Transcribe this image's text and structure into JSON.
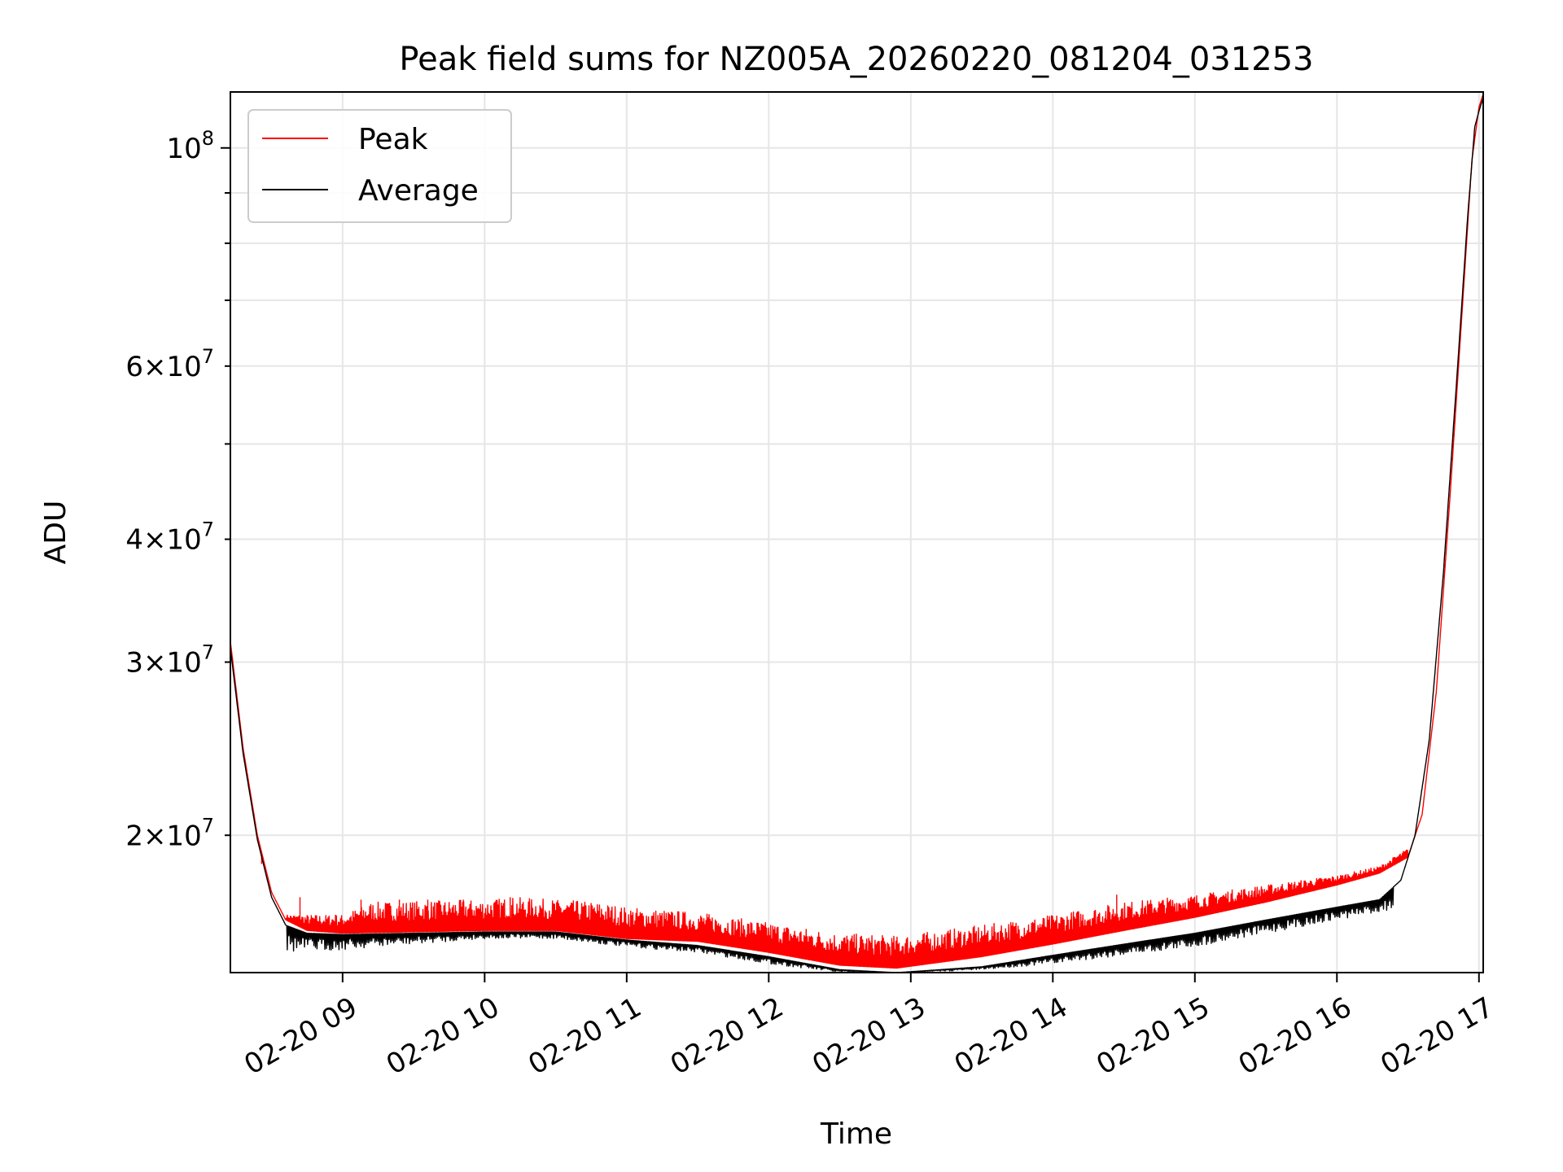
{
  "chart_data": {
    "type": "line",
    "title": "Peak field sums for NZ005A_20260220_081204_031253",
    "xlabel": "Time",
    "ylabel": "ADU",
    "yscale": "log",
    "grid": true,
    "legend_position": "top-left",
    "xlim": [
      8.21,
      17.03
    ],
    "ylim": [
      14500000,
      114000000
    ],
    "x_unit": "hour of 2026-02-20",
    "x_ticks": [
      {
        "value": 9,
        "label": "02-20 09"
      },
      {
        "value": 10,
        "label": "02-20 10"
      },
      {
        "value": 11,
        "label": "02-20 11"
      },
      {
        "value": 12,
        "label": "02-20 12"
      },
      {
        "value": 13,
        "label": "02-20 13"
      },
      {
        "value": 14,
        "label": "02-20 14"
      },
      {
        "value": 15,
        "label": "02-20 15"
      },
      {
        "value": 16,
        "label": "02-20 16"
      },
      {
        "value": 17,
        "label": "02-20 17"
      }
    ],
    "y_major_ticks": [
      {
        "value": 100000000,
        "mantissa": "",
        "exponent": "8"
      }
    ],
    "y_minor_ticks": [
      {
        "value": 20000000,
        "mantissa": "2",
        "exponent": "7"
      },
      {
        "value": 30000000,
        "mantissa": "3",
        "exponent": "7"
      },
      {
        "value": 40000000,
        "mantissa": "4",
        "exponent": "7"
      },
      {
        "value": 60000000,
        "mantissa": "6",
        "exponent": "7"
      }
    ],
    "y_unlabeled_minor_ticks": [
      50000000,
      70000000,
      80000000,
      90000000
    ],
    "series": [
      {
        "name": "Peak",
        "color": "#ff0000",
        "baseline": [
          [
            8.21,
            31500000
          ],
          [
            8.3,
            24500000
          ],
          [
            8.4,
            20000000
          ],
          [
            8.5,
            17500000
          ],
          [
            8.6,
            16400000
          ],
          [
            8.75,
            16000000
          ],
          [
            9.0,
            15900000
          ],
          [
            9.5,
            15950000
          ],
          [
            10.0,
            16000000
          ],
          [
            10.5,
            16000000
          ],
          [
            11.0,
            15700000
          ],
          [
            11.5,
            15600000
          ],
          [
            12.0,
            15200000
          ],
          [
            12.5,
            14750000
          ],
          [
            12.9,
            14650000
          ],
          [
            13.5,
            15050000
          ],
          [
            14.0,
            15500000
          ],
          [
            14.5,
            16000000
          ],
          [
            15.0,
            16500000
          ],
          [
            15.5,
            17100000
          ],
          [
            16.0,
            17800000
          ],
          [
            16.3,
            18300000
          ],
          [
            16.5,
            19000000
          ],
          [
            16.6,
            21000000
          ],
          [
            16.7,
            28000000
          ],
          [
            16.8,
            45000000
          ],
          [
            16.9,
            75000000
          ],
          [
            16.95,
            97000000
          ],
          [
            17.0,
            110000000
          ],
          [
            17.03,
            113500000
          ]
        ],
        "envelope": [
          [
            8.6,
            16600000
          ],
          [
            9.0,
            16600000
          ],
          [
            9.2,
            17100000
          ],
          [
            10.0,
            17200000
          ],
          [
            10.2,
            17300000
          ],
          [
            10.8,
            17100000
          ],
          [
            11.0,
            16900000
          ],
          [
            11.5,
            16700000
          ],
          [
            12.0,
            16300000
          ],
          [
            12.5,
            15900000
          ],
          [
            12.9,
            15800000
          ],
          [
            13.5,
            16200000
          ],
          [
            14.0,
            16600000
          ],
          [
            14.5,
            17100000
          ],
          [
            15.0,
            17400000
          ],
          [
            15.5,
            17800000
          ],
          [
            16.0,
            18200000
          ],
          [
            16.3,
            18600000
          ],
          [
            16.5,
            19400000
          ]
        ],
        "spikes": [
          [
            8.43,
            18700000
          ],
          [
            8.7,
            17300000
          ],
          [
            8.95,
            16600000
          ],
          [
            9.13,
            17200000
          ],
          [
            9.4,
            17200000
          ],
          [
            9.6,
            17200000
          ],
          [
            9.85,
            17200000
          ],
          [
            10.18,
            17300000
          ],
          [
            14.45,
            17400000
          ]
        ]
      },
      {
        "name": "Average",
        "color": "#000000",
        "baseline": [
          [
            8.21,
            31000000
          ],
          [
            8.3,
            24200000
          ],
          [
            8.4,
            19800000
          ],
          [
            8.5,
            17300000
          ],
          [
            8.6,
            16200000
          ],
          [
            8.75,
            15900000
          ],
          [
            9.0,
            15850000
          ],
          [
            9.5,
            15900000
          ],
          [
            10.0,
            15950000
          ],
          [
            10.5,
            15950000
          ],
          [
            11.0,
            15650000
          ],
          [
            11.5,
            15450000
          ],
          [
            12.0,
            15050000
          ],
          [
            12.5,
            14600000
          ],
          [
            12.9,
            14500000
          ],
          [
            13.5,
            14700000
          ],
          [
            14.0,
            15100000
          ],
          [
            14.5,
            15500000
          ],
          [
            15.0,
            15900000
          ],
          [
            15.5,
            16400000
          ],
          [
            16.0,
            16900000
          ],
          [
            16.3,
            17200000
          ],
          [
            16.45,
            18000000
          ],
          [
            16.55,
            20000000
          ],
          [
            16.65,
            25000000
          ],
          [
            16.75,
            37000000
          ],
          [
            16.85,
            60000000
          ],
          [
            16.92,
            85000000
          ],
          [
            16.97,
            105000000
          ],
          [
            17.0,
            109000000
          ],
          [
            17.03,
            112500000
          ]
        ],
        "dips": [
          [
            8.6,
            15200000
          ],
          [
            9.0,
            15300000
          ],
          [
            9.5,
            15500000
          ],
          [
            10.0,
            15700000
          ],
          [
            10.5,
            15700000
          ],
          [
            11.0,
            15400000
          ],
          [
            11.5,
            15200000
          ],
          [
            12.0,
            14800000
          ],
          [
            12.5,
            14500000
          ],
          [
            13.0,
            14500000
          ],
          [
            13.5,
            14600000
          ],
          [
            14.0,
            14800000
          ],
          [
            14.5,
            15100000
          ],
          [
            15.0,
            15400000
          ],
          [
            15.5,
            15900000
          ],
          [
            16.0,
            16400000
          ],
          [
            16.4,
            16800000
          ]
        ]
      }
    ]
  }
}
